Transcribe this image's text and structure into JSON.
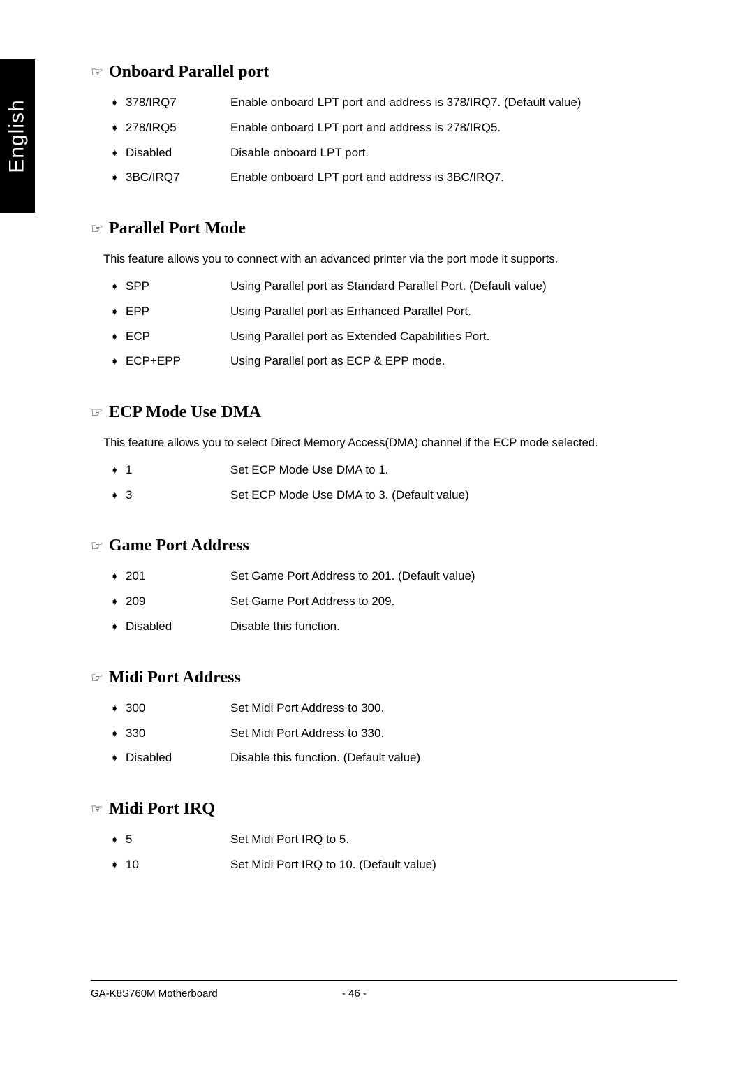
{
  "language_tab": "English",
  "sections": [
    {
      "title": "Onboard Parallel port",
      "intro": "",
      "options": [
        {
          "label": "378/IRQ7",
          "desc": "Enable onboard LPT port and address is 378/IRQ7. (Default value)"
        },
        {
          "label": "278/IRQ5",
          "desc": "Enable onboard LPT port and address is 278/IRQ5."
        },
        {
          "label": "Disabled",
          "desc": "Disable onboard LPT port."
        },
        {
          "label": "3BC/IRQ7",
          "desc": "Enable onboard LPT port and address is 3BC/IRQ7."
        }
      ]
    },
    {
      "title": "Parallel Port Mode",
      "intro": "This feature allows you to connect with an advanced printer via the port mode it supports.",
      "options": [
        {
          "label": "SPP",
          "desc": "Using Parallel port as Standard Parallel Port. (Default value)"
        },
        {
          "label": "EPP",
          "desc": "Using Parallel port as Enhanced Parallel Port."
        },
        {
          "label": "ECP",
          "desc": "Using Parallel port as Extended Capabilities Port."
        },
        {
          "label": "ECP+EPP",
          "desc": "Using Parallel port as ECP & EPP mode."
        }
      ]
    },
    {
      "title": "ECP Mode Use DMA",
      "intro": "This feature allows you to select Direct Memory Access(DMA) channel if the ECP mode selected.",
      "options": [
        {
          "label": "1",
          "desc": "Set ECP Mode Use DMA to 1."
        },
        {
          "label": "3",
          "desc": "Set ECP Mode Use DMA to 3. (Default value)"
        }
      ]
    },
    {
      "title": "Game Port Address",
      "intro": "",
      "options": [
        {
          "label": "201",
          "desc": "Set Game Port Address to 201. (Default value)"
        },
        {
          "label": "209",
          "desc": "Set Game Port Address to 209."
        },
        {
          "label": "Disabled",
          "desc": "Disable this function."
        }
      ]
    },
    {
      "title": "Midi Port Address",
      "intro": "",
      "options": [
        {
          "label": "300",
          "desc": "Set Midi Port Address to 300."
        },
        {
          "label": "330",
          "desc": "Set Midi Port Address to 330."
        },
        {
          "label": "Disabled",
          "desc": "Disable this function. (Default value)"
        }
      ]
    },
    {
      "title": "Midi Port IRQ",
      "intro": "",
      "options": [
        {
          "label": "5",
          "desc": "Set Midi Port IRQ to 5."
        },
        {
          "label": "10",
          "desc": "Set Midi Port IRQ to 10. (Default value)"
        }
      ]
    }
  ],
  "footer": {
    "left": "GA-K8S760M Motherboard",
    "center": "- 46 -"
  },
  "glyphs": {
    "hand": "☞",
    "bullet": "➧"
  }
}
